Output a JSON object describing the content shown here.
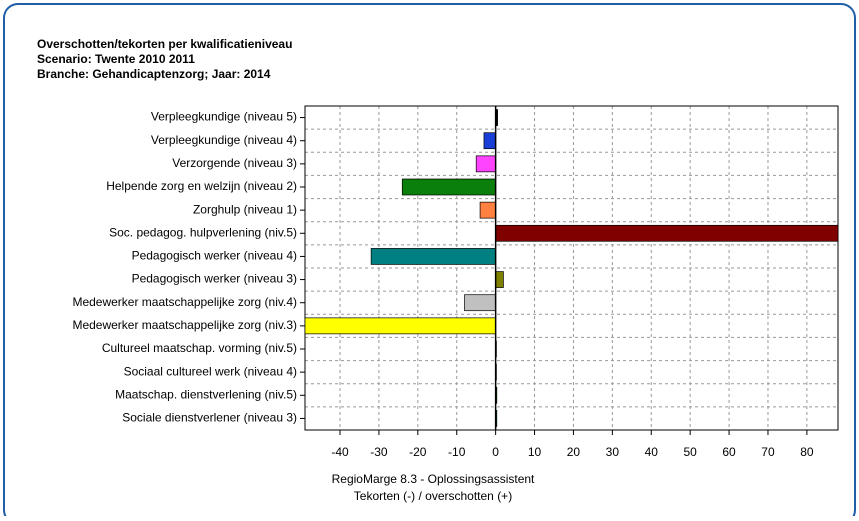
{
  "chart_data": {
    "type": "barh",
    "title": [
      "Overschotten/tekorten per kwalificatieniveau",
      "Scenario: Twente 2010 2011",
      "Branche: Gehandicaptenzorg; Jaar: 2014"
    ],
    "xlabel": [
      "RegioMarge 8.3 - Oplossingsassistent",
      "Tekorten (-) / overschotten (+)"
    ],
    "categories": [
      "Verpleegkundige (niveau 5)",
      "Verpleegkundige (niveau 4)",
      "Verzorgende (niveau 3)",
      "Helpende zorg en welzijn (niveau 2)",
      "Zorghulp (niveau 1)",
      "Soc. pedagog. hulpverlening (niv.5)",
      "Pedagogisch werker (niveau 4)",
      "Pedagogisch werker (niveau 3)",
      "Medewerker maatschappelijke zorg (niv.4)",
      "Medewerker maatschappelijke zorg (niv.3)",
      "Cultureel maatschap. vorming (niv.5)",
      "Sociaal cultureel werk (niveau 4)",
      "Maatschap. dienstverlening (niv.5)",
      "Sociale dienstverlener (niveau 3)"
    ],
    "values": [
      0.5,
      -3,
      -5,
      -24,
      -4,
      88,
      -32,
      2,
      -8,
      -49,
      0.2,
      0.2,
      0.3,
      0.3
    ],
    "colors": [
      "#000000",
      "#1a3fd6",
      "#ff44ff",
      "#0b7f0b",
      "#ff8040",
      "#800000",
      "#008080",
      "#808000",
      "#c0c0c0",
      "#ffff00",
      "#000080",
      "#ff00ff",
      "#00c000",
      "#00c0c0"
    ],
    "xlim": [
      -49,
      88
    ],
    "xticks": [
      -40,
      -30,
      -20,
      -10,
      0,
      10,
      20,
      30,
      40,
      50,
      60,
      70,
      80
    ],
    "grid": true
  }
}
